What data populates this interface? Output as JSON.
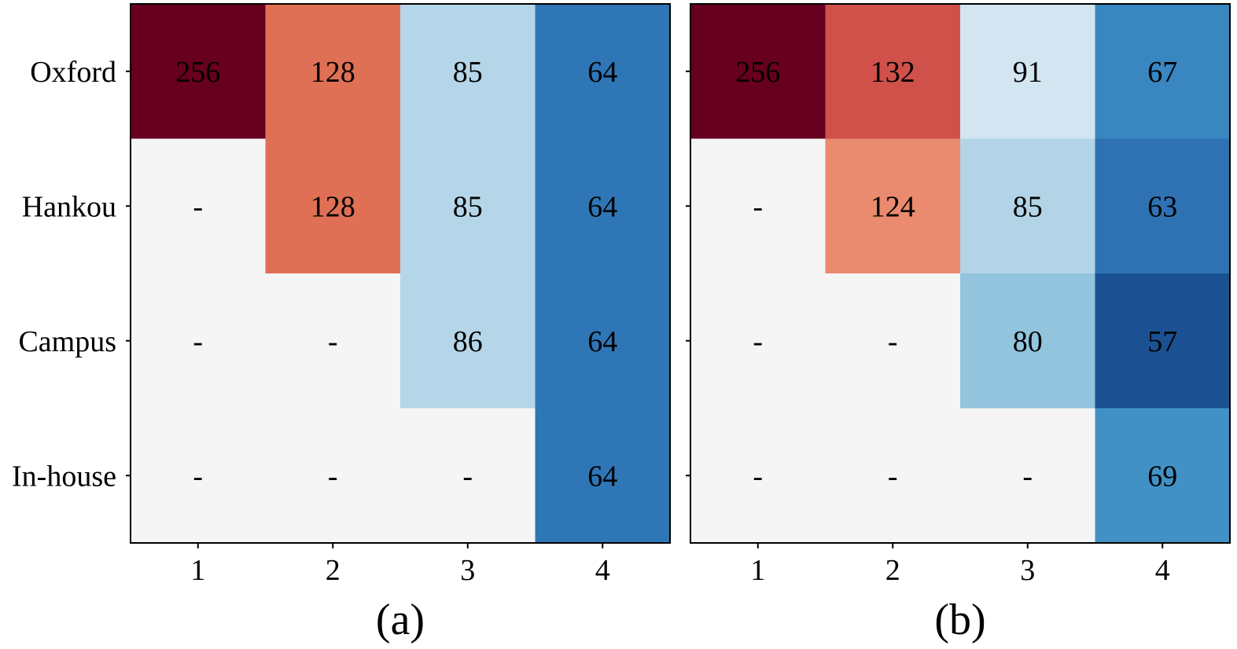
{
  "chart_data": [
    {
      "type": "heatmap",
      "panel_label": "(a)",
      "rows": [
        "Oxford",
        "Hankou",
        "Campus",
        "In-house"
      ],
      "columns": [
        "1",
        "2",
        "3",
        "4"
      ],
      "cells": [
        [
          "256",
          "128",
          "85",
          "64"
        ],
        [
          "-",
          "128",
          "85",
          "64"
        ],
        [
          "-",
          "-",
          "86",
          "64"
        ],
        [
          "-",
          "-",
          "-",
          "64"
        ]
      ],
      "colors": [
        [
          "#67001f",
          "#e07055",
          "#b5d6e9",
          "#2f76b6"
        ],
        [
          "#f5f5f5",
          "#e07055",
          "#b5d6e9",
          "#2f76b6"
        ],
        [
          "#f5f5f5",
          "#f5f5f5",
          "#b5d6e9",
          "#2f76b6"
        ],
        [
          "#f5f5f5",
          "#f5f5f5",
          "#f5f5f5",
          "#2f76b6"
        ]
      ],
      "text_colors": [
        [
          "#000000",
          "#000000",
          "#000000",
          "#000000"
        ],
        [
          "#000000",
          "#000000",
          "#000000",
          "#000000"
        ],
        [
          "#000000",
          "#000000",
          "#000000",
          "#000000"
        ],
        [
          "#000000",
          "#000000",
          "#000000",
          "#000000"
        ]
      ]
    },
    {
      "type": "heatmap",
      "panel_label": "(b)",
      "rows": [
        "Oxford",
        "Hankou",
        "Campus",
        "In-house"
      ],
      "columns": [
        "1",
        "2",
        "3",
        "4"
      ],
      "cells": [
        [
          "256",
          "132",
          "91",
          "67"
        ],
        [
          "-",
          "124",
          "85",
          "63"
        ],
        [
          "-",
          "-",
          "80",
          "57"
        ],
        [
          "-",
          "-",
          "-",
          "69"
        ]
      ],
      "colors": [
        [
          "#67001f",
          "#d0514a",
          "#d2e5f1",
          "#3986c0"
        ],
        [
          "#f5f5f5",
          "#ea8a6e",
          "#b3d4e7",
          "#2f72b4"
        ],
        [
          "#f5f5f5",
          "#f5f5f5",
          "#92c4de",
          "#1b5192"
        ],
        [
          "#f5f5f5",
          "#f5f5f5",
          "#f5f5f5",
          "#4191c6"
        ]
      ],
      "text_colors": [
        [
          "#000000",
          "#000000",
          "#000000",
          "#000000"
        ],
        [
          "#000000",
          "#000000",
          "#000000",
          "#000000"
        ],
        [
          "#000000",
          "#000000",
          "#000000",
          "#000000"
        ],
        [
          "#000000",
          "#000000",
          "#000000",
          "#000000"
        ]
      ]
    }
  ]
}
